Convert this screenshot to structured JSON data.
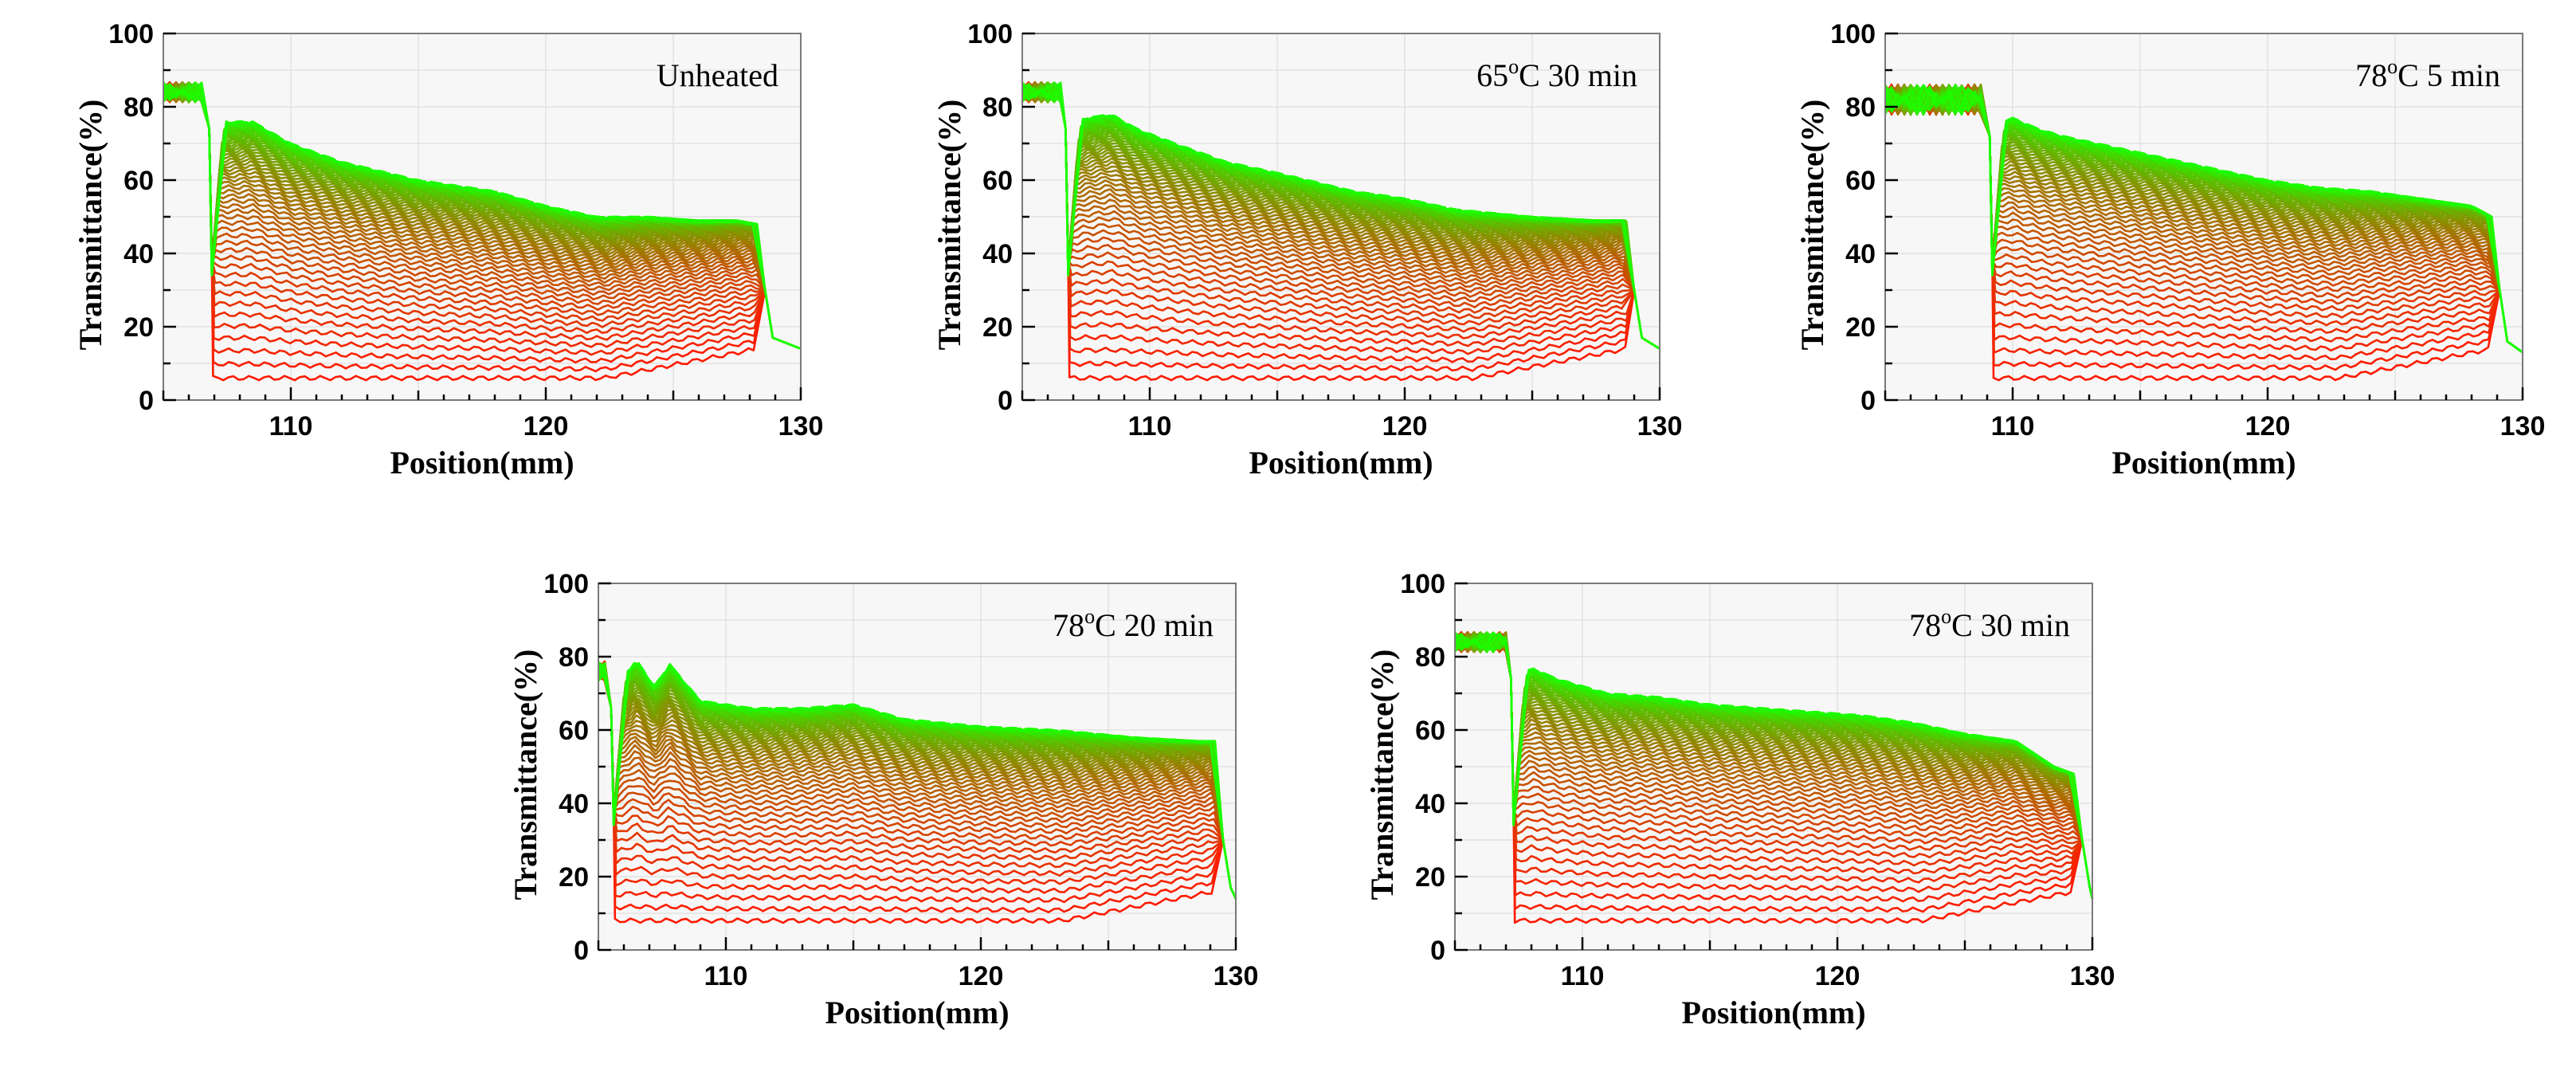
{
  "colors": {
    "early": "#ff1a00",
    "late": "#1aff00",
    "background": "#f7f7f7"
  },
  "chart_data": [
    {
      "type": "line",
      "panel_label": {
        "main": "Unheated",
        "sup": "",
        "rest": ""
      },
      "xlabel": "Position(mm)",
      "ylabel": "Transmittance(%)",
      "xlim": [
        105,
        130
      ],
      "ylim": [
        0,
        100
      ],
      "xticks": [
        110,
        120,
        130
      ],
      "yticks": [
        0,
        20,
        40,
        60,
        80,
        100
      ],
      "grid": true,
      "series_count": 60,
      "cell_start_mm": 106.9,
      "cell_end_mm": 128.3,
      "air_level": 84,
      "end_level": 14,
      "first_curve_level": 6,
      "last_curve_start": 76,
      "last_curve_end": 48,
      "profile_x": [
        106.9,
        107.6,
        108.5,
        110,
        112,
        115,
        118,
        120,
        122,
        124,
        126,
        127.5,
        128.3
      ],
      "profile_y": [
        76,
        76,
        76,
        70,
        65,
        60,
        57,
        53,
        50,
        50,
        49,
        49,
        48
      ]
    },
    {
      "type": "line",
      "panel_label": {
        "main": "65",
        "sup": "o",
        "rest": "C 30 min"
      },
      "xlabel": "Position(mm)",
      "ylabel": "Transmittance(%)",
      "xlim": [
        105,
        130
      ],
      "ylim": [
        0,
        100
      ],
      "xticks": [
        110,
        120,
        130
      ],
      "yticks": [
        0,
        20,
        40,
        60,
        80,
        100
      ],
      "grid": true,
      "series_count": 60,
      "cell_start_mm": 106.8,
      "cell_end_mm": 128.7,
      "air_level": 84,
      "end_level": 14,
      "first_curve_level": 6,
      "last_curve_start": 78,
      "last_curve_end": 49,
      "profile_x": [
        106.8,
        107.5,
        108.5,
        109.5,
        111,
        113,
        115,
        118,
        120,
        122,
        125,
        127.5,
        128.7
      ],
      "profile_y": [
        75,
        77,
        78,
        74,
        70,
        65,
        62,
        57,
        55,
        52,
        50,
        49,
        49
      ]
    },
    {
      "type": "line",
      "panel_label": {
        "main": "78",
        "sup": "o",
        "rest": "C 5 min"
      },
      "xlabel": "Position(mm)",
      "ylabel": "Transmittance(%)",
      "xlim": [
        105,
        130
      ],
      "ylim": [
        0,
        100
      ],
      "xticks": [
        110,
        120,
        130
      ],
      "yticks": [
        0,
        20,
        40,
        60,
        80,
        100
      ],
      "grid": true,
      "series_count": 60,
      "cell_start_mm": 109.2,
      "cell_end_mm": 128.8,
      "air_level": 82,
      "end_level": 13,
      "first_curve_level": 6,
      "last_curve_start": 78,
      "last_curve_end": 50,
      "profile_x": [
        109.2,
        110,
        111,
        112,
        114,
        116,
        118,
        120,
        122,
        124,
        126,
        128,
        128.8
      ],
      "profile_y": [
        76,
        77,
        74,
        72,
        69,
        66,
        63,
        60,
        58,
        57,
        55,
        53,
        50
      ]
    },
    {
      "type": "line",
      "panel_label": {
        "main": "78",
        "sup": "o",
        "rest": "C 20 min"
      },
      "xlabel": "Position(mm)",
      "ylabel": "Transmittance(%)",
      "xlim": [
        105,
        130
      ],
      "ylim": [
        0,
        100
      ],
      "xticks": [
        110,
        120,
        130
      ],
      "yticks": [
        0,
        20,
        40,
        60,
        80,
        100
      ],
      "grid": true,
      "series_count": 60,
      "cell_start_mm": 105.6,
      "cell_end_mm": 129.2,
      "air_level": 76,
      "end_level": 14,
      "first_curve_level": 8,
      "last_curve_start": 77,
      "last_curve_end": 57,
      "profile_x": [
        105.6,
        106.5,
        107.2,
        107.8,
        109,
        111,
        113,
        115,
        117,
        120,
        123,
        126,
        128.5,
        129.2
      ],
      "profile_y": [
        72,
        79,
        72,
        78,
        68,
        66,
        66,
        67,
        63,
        61,
        60,
        58,
        57,
        57
      ]
    },
    {
      "type": "line",
      "panel_label": {
        "main": "78",
        "sup": "o",
        "rest": "C 30 min"
      },
      "xlabel": "Position(mm)",
      "ylabel": "Transmittance(%)",
      "xlim": [
        105,
        130
      ],
      "ylim": [
        0,
        100
      ],
      "xticks": [
        110,
        120,
        130
      ],
      "yticks": [
        0,
        20,
        40,
        60,
        80,
        100
      ],
      "grid": true,
      "series_count": 60,
      "cell_start_mm": 107.3,
      "cell_end_mm": 129.3,
      "air_level": 84,
      "end_level": 14,
      "first_curve_level": 8,
      "last_curve_start": 77,
      "last_curve_end": 48,
      "profile_x": [
        107.3,
        108,
        109,
        111,
        113,
        115,
        117,
        119,
        121,
        123,
        125,
        127,
        128.5,
        129.3
      ],
      "profile_y": [
        73,
        77,
        74,
        70,
        69,
        67,
        66,
        65,
        64,
        62,
        59,
        57,
        50,
        48
      ]
    }
  ]
}
